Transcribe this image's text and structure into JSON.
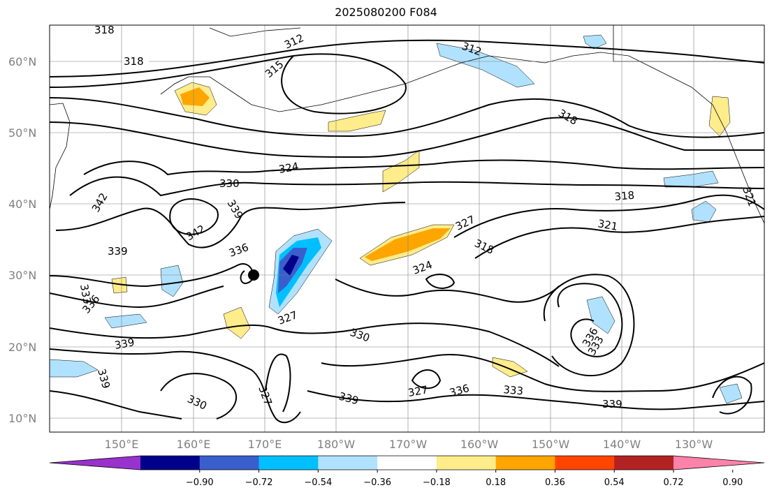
{
  "title": "2025080200 F084",
  "lat_labels": [
    "60°N",
    "50°N",
    "40°N",
    "30°N",
    "20°N",
    "10°N"
  ],
  "lon_labels": [
    "150°E",
    "160°E",
    "170°E",
    "180°W",
    "170°W",
    "160°W",
    "150°W",
    "140°W",
    "130°W"
  ],
  "colorbar": {
    "ticks": [
      "−0.90",
      "−0.72",
      "−0.54",
      "−0.36",
      "−0.18",
      "0.18",
      "0.36",
      "0.54",
      "0.72",
      "0.90"
    ],
    "colors": [
      "#9932cc",
      "#00008b",
      "#3a5fcd",
      "#00bfff",
      "#b0e2ff",
      "#ffffff",
      "#ffec8b",
      "#ffa500",
      "#ff4500",
      "#b22222",
      "#ff82ab"
    ]
  },
  "contour_labels": [
    "318",
    "318",
    "312",
    "312",
    "315",
    "318",
    "324",
    "330",
    "339",
    "342",
    "342",
    "339",
    "336",
    "336",
    "333",
    "339",
    "339",
    "327",
    "327",
    "318",
    "321",
    "324",
    "318",
    "321",
    "330",
    "327",
    "327",
    "336",
    "333",
    "339",
    "339",
    "330",
    "333",
    "336"
  ],
  "marker": "black-dot"
}
